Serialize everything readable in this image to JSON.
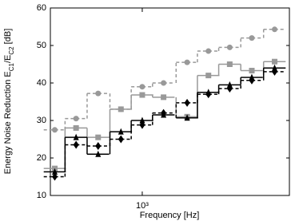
{
  "chart_data": {
    "type": "step",
    "xlabel": "Frequency [Hz]",
    "ylabel": [
      "Energy Noise Reduction E",
      "C1",
      "/E",
      "C2",
      " [dB]"
    ],
    "x": [
      400,
      500,
      630,
      800,
      1000,
      1250,
      1600,
      2000,
      2500,
      3150,
      4000
    ],
    "xlim": [
      382,
      4670
    ],
    "log_x": true,
    "xticks": [
      {
        "value": 1000,
        "label": "10³"
      }
    ],
    "ylim": [
      10,
      60
    ],
    "yticks": [
      10,
      20,
      30,
      40,
      50,
      60
    ],
    "series": [
      {
        "color": "#999999",
        "dashed": true,
        "marker": "circle",
        "values": [
          27.5,
          30.5,
          37.2,
          33,
          39,
          40,
          45.5,
          48.5,
          49.5,
          52,
          54.3
        ]
      },
      {
        "color": "#999999",
        "dashed": false,
        "marker": "square",
        "values": [
          17.2,
          28,
          25.5,
          33,
          36.8,
          36.2,
          31,
          42,
          45,
          43.3,
          45.7
        ]
      },
      {
        "color": "#000000",
        "dashed": false,
        "marker": "triangle",
        "values": [
          16.3,
          25.5,
          21,
          27,
          30,
          31.5,
          30.7,
          37.5,
          39.5,
          41.5,
          44
        ]
      },
      {
        "color": "#000000",
        "dashed": true,
        "marker": "diamond",
        "values": [
          15,
          23.5,
          23.2,
          25,
          28.8,
          32,
          34.7,
          37,
          38.5,
          40.7,
          43
        ]
      }
    ]
  }
}
